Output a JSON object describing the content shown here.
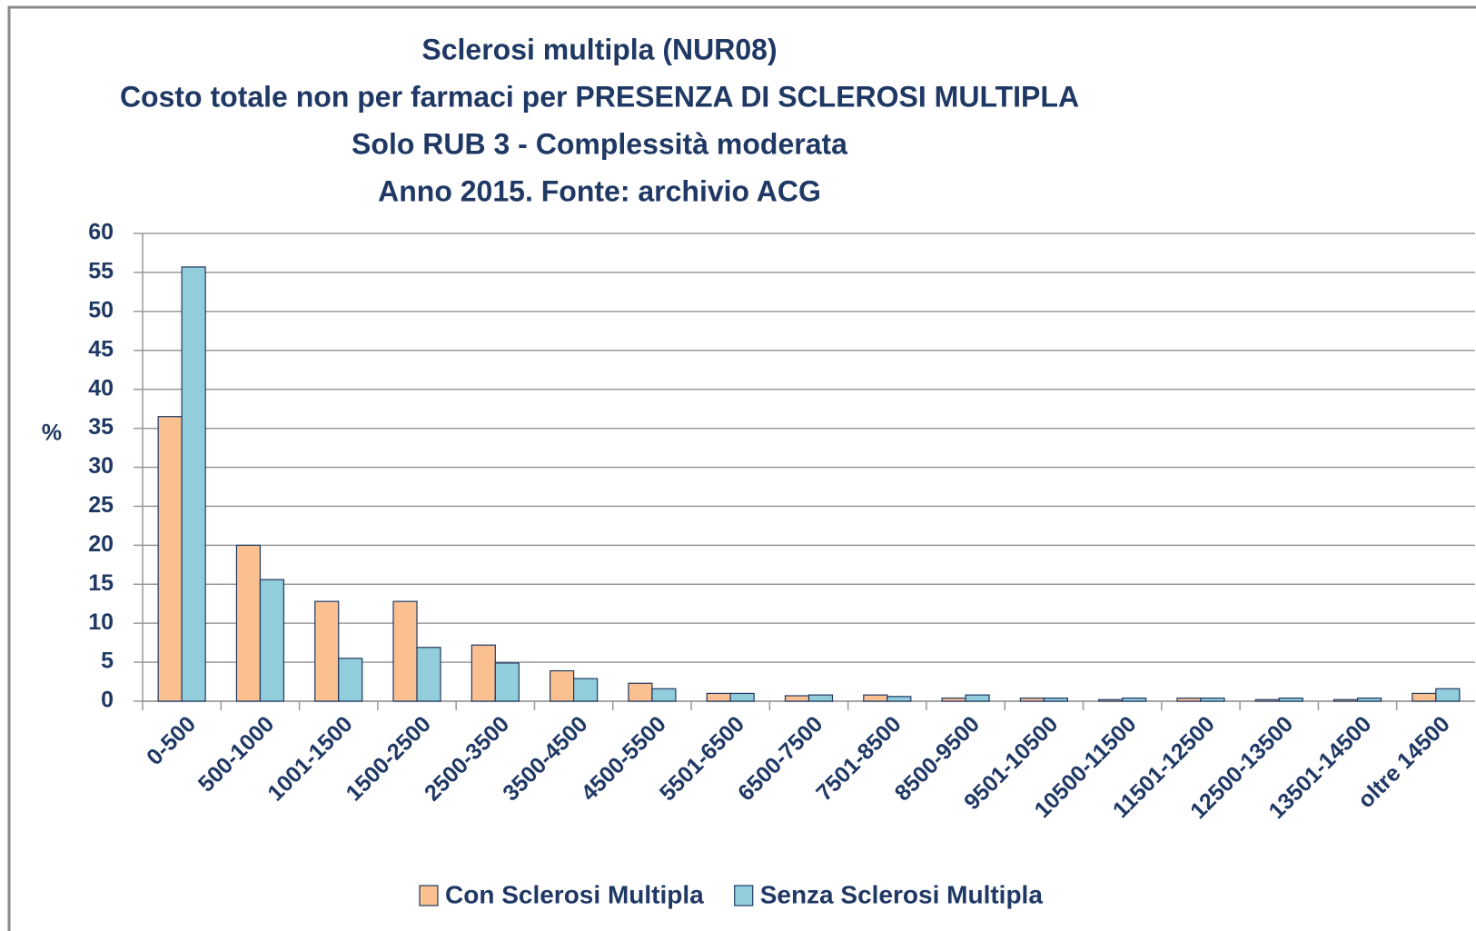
{
  "chart_data": {
    "type": "bar",
    "title": [
      "Sclerosi multipla (NUR08)",
      "Costo totale non per farmaci per PRESENZA DI SCLEROSI MULTIPLA",
      "Solo RUB 3 - Complessità moderata",
      "Anno 2015. Fonte: archivio ACG"
    ],
    "y_label": "%",
    "categories": [
      "0-500",
      "500-1000",
      "1001-1500",
      "1500-2500",
      "2500-3500",
      "3500-4500",
      "4500-5500",
      "5501-6500",
      "6500-7500",
      "7501-8500",
      "8500-9500",
      "9501-10500",
      "10500-11500",
      "11501-12500",
      "12500-13500",
      "13501-14500",
      "oltre 14500"
    ],
    "series": [
      {
        "name": "Con Sclerosi Multipla",
        "color": "#fac090",
        "values": [
          36.5,
          20,
          12.8,
          12.8,
          7.2,
          3.9,
          2.3,
          1.0,
          0.7,
          0.8,
          0.4,
          0.4,
          0.2,
          0.4,
          0.2,
          0.2,
          1.0
        ]
      },
      {
        "name": "Senza Sclerosi Multipla",
        "color": "#92cddc",
        "values": [
          55.7,
          15.6,
          5.5,
          6.9,
          4.9,
          2.9,
          1.6,
          1.0,
          0.8,
          0.6,
          0.8,
          0.4,
          0.4,
          0.4,
          0.4,
          0.4,
          1.6
        ]
      }
    ],
    "ylim": [
      0,
      60
    ],
    "yticks": [
      0,
      5,
      10,
      15,
      20,
      25,
      30,
      35,
      40,
      45,
      50,
      55,
      60
    ],
    "grid": true,
    "legend": "bottom"
  }
}
